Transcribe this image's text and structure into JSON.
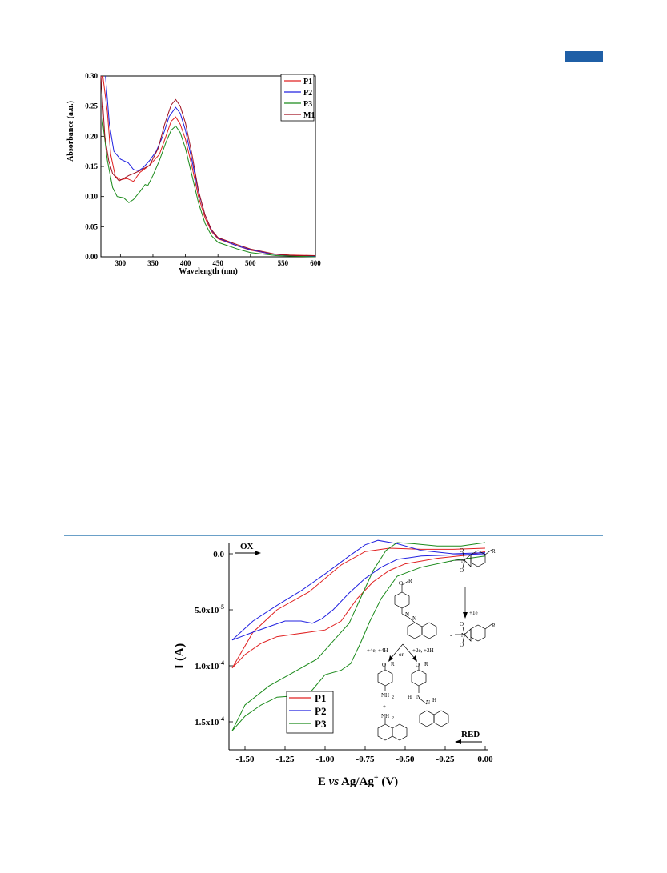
{
  "chart_data": [
    {
      "type": "line",
      "xlabel": "Wavelength (nm)",
      "ylabel": "Absorbance (a.u.)",
      "xlim": [
        270,
        600
      ],
      "ylim": [
        0.0,
        0.3
      ],
      "xticks": [
        "300",
        "350",
        "400",
        "450",
        "500",
        "550",
        "600"
      ],
      "yticks": [
        "0.00",
        "0.05",
        "0.10",
        "0.15",
        "0.20",
        "0.25",
        "0.30"
      ],
      "legend_position": "top-right",
      "series": [
        {
          "name": "P1",
          "color": "#e02020",
          "points": [
            [
              273,
              0.3
            ],
            [
              280,
              0.24
            ],
            [
              285,
              0.17
            ],
            [
              292,
              0.134
            ],
            [
              300,
              0.128
            ],
            [
              310,
              0.13
            ],
            [
              320,
              0.125
            ],
            [
              330,
              0.14
            ],
            [
              345,
              0.152
            ],
            [
              360,
              0.17
            ],
            [
              370,
              0.2
            ],
            [
              378,
              0.225
            ],
            [
              385,
              0.232
            ],
            [
              392,
              0.22
            ],
            [
              400,
              0.195
            ],
            [
              410,
              0.15
            ],
            [
              420,
              0.1
            ],
            [
              430,
              0.065
            ],
            [
              440,
              0.042
            ],
            [
              450,
              0.03
            ],
            [
              480,
              0.018
            ],
            [
              500,
              0.011
            ],
            [
              530,
              0.005
            ],
            [
              560,
              0.003
            ],
            [
              600,
              0.002
            ]
          ]
        },
        {
          "name": "P2",
          "color": "#2020e0",
          "points": [
            [
              277,
              0.3
            ],
            [
              283,
              0.22
            ],
            [
              290,
              0.175
            ],
            [
              300,
              0.162
            ],
            [
              312,
              0.156
            ],
            [
              320,
              0.145
            ],
            [
              328,
              0.143
            ],
            [
              335,
              0.148
            ],
            [
              345,
              0.16
            ],
            [
              355,
              0.175
            ],
            [
              365,
              0.2
            ],
            [
              375,
              0.233
            ],
            [
              385,
              0.248
            ],
            [
              392,
              0.238
            ],
            [
              400,
              0.21
            ],
            [
              410,
              0.16
            ],
            [
              420,
              0.108
            ],
            [
              430,
              0.07
            ],
            [
              440,
              0.044
            ],
            [
              450,
              0.031
            ],
            [
              480,
              0.018
            ],
            [
              500,
              0.012
            ],
            [
              530,
              0.005
            ],
            [
              560,
              0.002
            ],
            [
              600,
              0.001
            ]
          ]
        },
        {
          "name": "P3",
          "color": "#1a8a1a",
          "points": [
            [
              272,
              0.23
            ],
            [
              280,
              0.16
            ],
            [
              288,
              0.115
            ],
            [
              295,
              0.1
            ],
            [
              305,
              0.098
            ],
            [
              313,
              0.09
            ],
            [
              320,
              0.095
            ],
            [
              330,
              0.108
            ],
            [
              338,
              0.12
            ],
            [
              342,
              0.118
            ],
            [
              350,
              0.135
            ],
            [
              360,
              0.16
            ],
            [
              370,
              0.19
            ],
            [
              378,
              0.21
            ],
            [
              385,
              0.217
            ],
            [
              392,
              0.206
            ],
            [
              400,
              0.18
            ],
            [
              410,
              0.135
            ],
            [
              420,
              0.09
            ],
            [
              430,
              0.056
            ],
            [
              440,
              0.035
            ],
            [
              450,
              0.024
            ],
            [
              480,
              0.013
            ],
            [
              500,
              0.007
            ],
            [
              540,
              0.002
            ],
            [
              600,
              0.0
            ]
          ]
        },
        {
          "name": "M1",
          "color": "#a01020",
          "points": [
            [
              270,
              0.3
            ],
            [
              276,
              0.2
            ],
            [
              282,
              0.16
            ],
            [
              288,
              0.138
            ],
            [
              298,
              0.126
            ],
            [
              305,
              0.13
            ],
            [
              313,
              0.135
            ],
            [
              320,
              0.138
            ],
            [
              330,
              0.143
            ],
            [
              345,
              0.152
            ],
            [
              358,
              0.18
            ],
            [
              368,
              0.22
            ],
            [
              378,
              0.252
            ],
            [
              385,
              0.261
            ],
            [
              392,
              0.25
            ],
            [
              400,
              0.222
            ],
            [
              410,
              0.17
            ],
            [
              420,
              0.11
            ],
            [
              430,
              0.07
            ],
            [
              440,
              0.045
            ],
            [
              450,
              0.032
            ],
            [
              480,
              0.02
            ],
            [
              500,
              0.013
            ],
            [
              540,
              0.004
            ],
            [
              570,
              0.002
            ],
            [
              600,
              0.002
            ]
          ]
        }
      ]
    },
    {
      "type": "line",
      "xlabel": "E vs Ag/Ag+ (V)",
      "xlabel_parts": {
        "pre": "E ",
        "italic": "vs",
        "mid": " Ag/Ag",
        "sup": "+",
        "post": " (V)"
      },
      "ylabel": "I (A)",
      "xlim": [
        -1.6,
        0.0
      ],
      "ylim": [
        -0.000175,
        1e-05
      ],
      "xticks": [
        "-1.50",
        "-1.25",
        "-1.00",
        "-0.75",
        "-0.50",
        "-0.25",
        "0.00"
      ],
      "yticks": [
        {
          "mant": "0.0",
          "exp": ""
        },
        {
          "mant": "-5.0x10",
          "exp": "-5"
        },
        {
          "mant": "-1.0x10",
          "exp": "-4"
        },
        {
          "mant": "-1.5x10",
          "exp": "-4"
        }
      ],
      "legend_position": "bottom-center",
      "annotations": {
        "ox": "OX",
        "red": "RED"
      },
      "series": [
        {
          "name": "P1",
          "color": "#e02020",
          "points": [
            [
              0.0,
              2e-06
            ],
            [
              -0.1,
              -1e-06
            ],
            [
              -0.3,
              -4e-06
            ],
            [
              -0.5,
              -9e-06
            ],
            [
              -0.6,
              -1.5e-05
            ],
            [
              -0.7,
              -2.5e-05
            ],
            [
              -0.8,
              -4e-05
            ],
            [
              -0.9,
              -6e-05
            ],
            [
              -1.0,
              -6.8e-05
            ],
            [
              -1.1,
              -7e-05
            ],
            [
              -1.2,
              -7.2e-05
            ],
            [
              -1.3,
              -7.4e-05
            ],
            [
              -1.4,
              -8e-05
            ],
            [
              -1.5,
              -9e-05
            ],
            [
              -1.58,
              -0.000102
            ],
            [
              -1.45,
              -7e-05
            ],
            [
              -1.3,
              -5e-05
            ],
            [
              -1.1,
              -3.4e-05
            ],
            [
              -0.9,
              -1e-05
            ],
            [
              -0.75,
              2e-06
            ],
            [
              -0.6,
              5e-06
            ],
            [
              -0.4,
              4e-06
            ],
            [
              -0.2,
              4e-06
            ],
            [
              0.0,
              5e-06
            ]
          ]
        },
        {
          "name": "P2",
          "color": "#2020e0",
          "points": [
            [
              0.0,
              0.0
            ],
            [
              -0.2,
              -1e-06
            ],
            [
              -0.4,
              -2e-06
            ],
            [
              -0.55,
              -5e-06
            ],
            [
              -0.65,
              -1.2e-05
            ],
            [
              -0.75,
              -2.2e-05
            ],
            [
              -0.85,
              -3.5e-05
            ],
            [
              -0.95,
              -5e-05
            ],
            [
              -1.02,
              -5.8e-05
            ],
            [
              -1.08,
              -6.2e-05
            ],
            [
              -1.15,
              -6e-05
            ],
            [
              -1.25,
              -6e-05
            ],
            [
              -1.35,
              -6.5e-05
            ],
            [
              -1.45,
              -7e-05
            ],
            [
              -1.58,
              -7.7e-05
            ],
            [
              -1.45,
              -6e-05
            ],
            [
              -1.3,
              -4.6e-05
            ],
            [
              -1.15,
              -3.3e-05
            ],
            [
              -1.0,
              -1.8e-05
            ],
            [
              -0.85,
              -2e-06
            ],
            [
              -0.75,
              8e-06
            ],
            [
              -0.67,
              1.2e-05
            ],
            [
              -0.55,
              9e-06
            ],
            [
              -0.4,
              3e-06
            ],
            [
              -0.2,
              0.0
            ],
            [
              0.0,
              1e-06
            ]
          ]
        },
        {
          "name": "P3",
          "color": "#1a8a1a",
          "points": [
            [
              0.0,
              -2e-06
            ],
            [
              -0.2,
              -6e-06
            ],
            [
              -0.4,
              -1.2e-05
            ],
            [
              -0.55,
              -2e-05
            ],
            [
              -0.65,
              -4e-05
            ],
            [
              -0.72,
              -6e-05
            ],
            [
              -0.78,
              -8e-05
            ],
            [
              -0.84,
              -9.8e-05
            ],
            [
              -0.9,
              -0.000104
            ],
            [
              -1.0,
              -0.000108
            ],
            [
              -1.1,
              -0.000125
            ],
            [
              -1.2,
              -0.000127
            ],
            [
              -1.3,
              -0.000128
            ],
            [
              -1.4,
              -0.000135
            ],
            [
              -1.5,
              -0.000145
            ],
            [
              -1.58,
              -0.000158
            ],
            [
              -1.5,
              -0.000135
            ],
            [
              -1.35,
              -0.000118
            ],
            [
              -1.2,
              -0.000106
            ],
            [
              -1.05,
              -9.4e-05
            ],
            [
              -0.95,
              -7.8e-05
            ],
            [
              -0.85,
              -6.2e-05
            ],
            [
              -0.78,
              -4e-05
            ],
            [
              -0.7,
              -1.5e-05
            ],
            [
              -0.62,
              3e-06
            ],
            [
              -0.55,
              1e-05
            ],
            [
              -0.45,
              9e-06
            ],
            [
              -0.3,
              7e-06
            ],
            [
              -0.15,
              7e-06
            ],
            [
              0.0,
              1e-05
            ]
          ]
        }
      ]
    }
  ],
  "scheme": {
    "steps": {
      "left": "+4e, +4H",
      "right": "+2e, +2H",
      "or": "or",
      "plus": "+",
      "one_e": "+1e"
    },
    "labels": {
      "r": "R",
      "o": "O",
      "n": "N",
      "h": "H",
      "nh": "NH",
      "two": "2",
      "minus": "-",
      "neg": "−",
      "plus": "+",
      "oxy": "O",
      "oxy_anion": "O"
    }
  }
}
